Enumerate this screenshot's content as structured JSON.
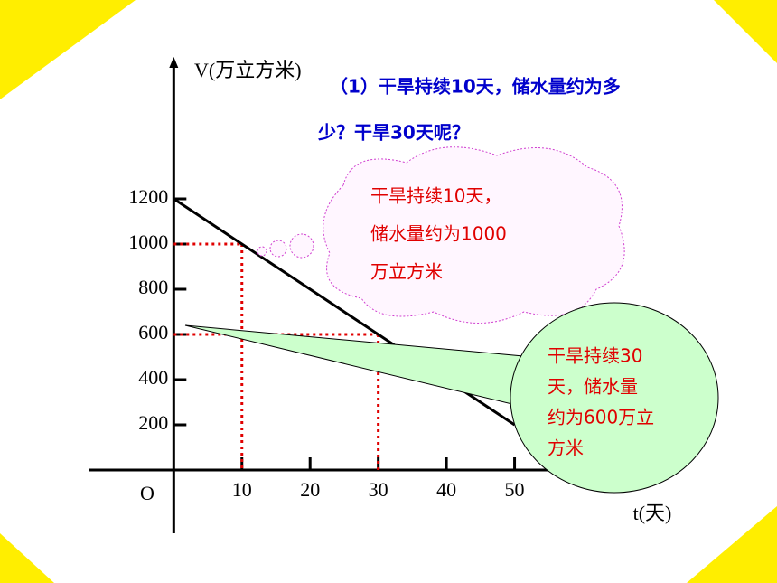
{
  "chart_data": {
    "type": "line",
    "question": [
      "（1）干旱持续10天，储水量约为多",
      "少？干旱30天呢？"
    ],
    "ylabel": "V(万立方米)",
    "xlabel": "t(天)",
    "origin_label": "O",
    "x": [
      0,
      10,
      30,
      50
    ],
    "series": [
      {
        "color": "#000000",
        "values": [
          1200,
          1000,
          600,
          200
        ]
      }
    ],
    "xlim": [
      -12.5,
      60
    ],
    "ylim": [
      -280,
      1820
    ],
    "xticks": [
      10,
      20,
      30,
      40,
      50
    ],
    "yticks": [
      200,
      400,
      600,
      800,
      1000,
      1200
    ],
    "guides": [
      {
        "x": 10,
        "y": 1000
      },
      {
        "x": 30,
        "y": 600
      }
    ],
    "guide_color": "#e00000",
    "callouts": [
      {
        "lines": [
          "干旱持续10天，",
          "储水量约为1000",
          "万立方米"
        ]
      },
      {
        "lines": [
          "干旱持续30",
          "天，储水量",
          "约为600万立",
          "方米"
        ]
      }
    ]
  }
}
